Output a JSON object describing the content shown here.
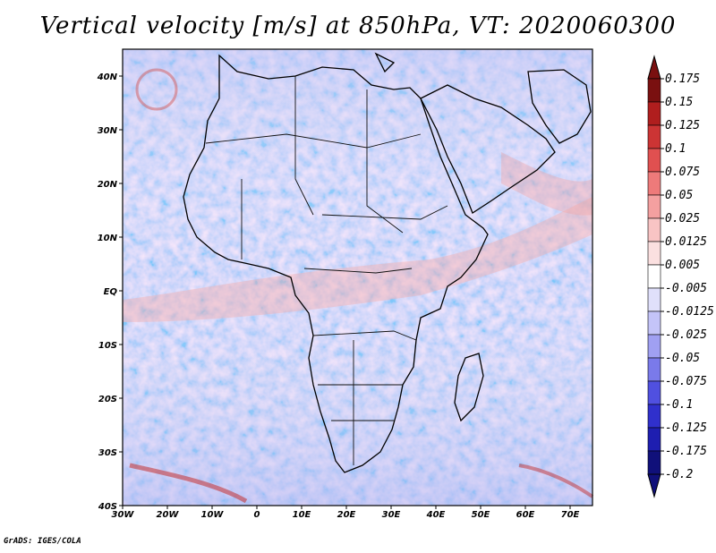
{
  "title": "Vertical velocity [m/s] at 850hPa, VT: 2020060300",
  "credit": "GrADS: IGES/COLA",
  "map": {
    "lon_labels": [
      "30W",
      "20W",
      "10W",
      "0",
      "10E",
      "20E",
      "30E",
      "40E",
      "50E",
      "60E",
      "70E"
    ],
    "lat_labels": [
      "40N",
      "30N",
      "20N",
      "10N",
      "EQ",
      "10S",
      "20S",
      "30S",
      "40S"
    ]
  },
  "colorbar": {
    "colors": [
      "#7a1010",
      "#b01e1e",
      "#cc3434",
      "#e05050",
      "#ee7a7a",
      "#f4a0a0",
      "#f8c4c4",
      "#fbe0e0",
      "#ffffff",
      "#e0e0fb",
      "#c4c4f8",
      "#a0a0f2",
      "#7a7aea",
      "#5050e0",
      "#3030cc",
      "#1e1eb0",
      "#10107a"
    ],
    "labels": [
      "0.175",
      "0.15",
      "0.125",
      "0.1",
      "0.075",
      "0.05",
      "0.025",
      "0.0125",
      "0.005",
      "-0.005",
      "-0.0125",
      "-0.025",
      "-0.05",
      "-0.075",
      "-0.1",
      "-0.125",
      "-0.175",
      "-0.2"
    ]
  }
}
